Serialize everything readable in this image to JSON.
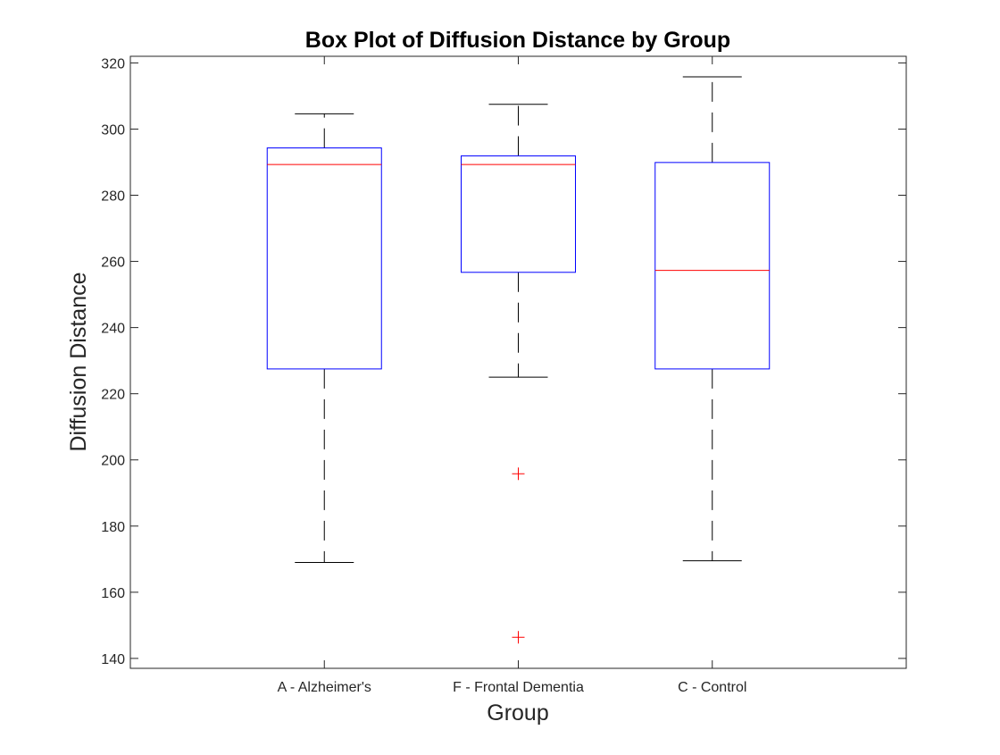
{
  "chart_data": {
    "type": "box",
    "title": "Box Plot of Diffusion Distance by Group",
    "xlabel": "Group",
    "ylabel": "Diffusion Distance",
    "ylim": [
      137,
      322
    ],
    "yticks": [
      140,
      160,
      180,
      200,
      220,
      240,
      260,
      280,
      300,
      320
    ],
    "categories": [
      "A - Alzheimer's",
      "F - Frontal Dementia",
      "C - Control"
    ],
    "boxes": [
      {
        "category": "A - Alzheimer's",
        "whisker_low": 169,
        "q1": 227.5,
        "median": 289.3,
        "q3": 294.3,
        "whisker_high": 304.6,
        "outliers": []
      },
      {
        "category": "F - Frontal Dementia",
        "whisker_low": 225,
        "q1": 256.7,
        "median": 289.3,
        "q3": 291.9,
        "whisker_high": 307.5,
        "outliers": [
          195.8,
          146.4
        ]
      },
      {
        "category": "C - Control",
        "whisker_low": 169.5,
        "q1": 227.5,
        "median": 257.3,
        "q3": 289.9,
        "whisker_high": 315.8,
        "outliers": []
      }
    ],
    "grid": false,
    "colors": {
      "box": "#0000ff",
      "median": "#ff0000",
      "whisker": "#000000",
      "outlier": "#ff0000",
      "axis": "#262626"
    }
  }
}
